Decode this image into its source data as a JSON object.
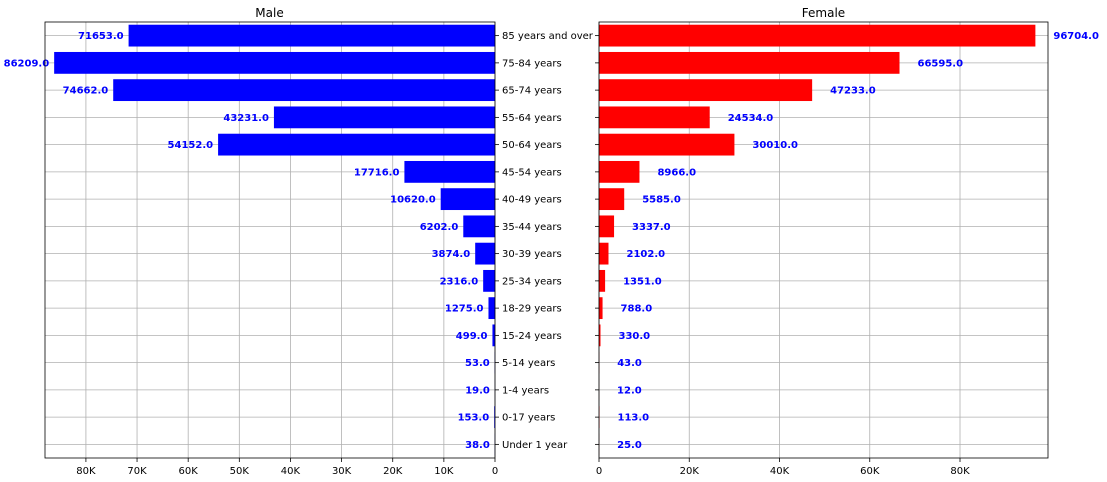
{
  "chart_data": {
    "type": "bar",
    "orientation": "horizontal",
    "layout": "population-pyramid",
    "categories": [
      "85 years and over",
      "75-84 years",
      "65-74 years",
      "55-64 years",
      "50-64 years",
      "45-54 years",
      "40-49 years",
      "35-44 years",
      "30-39 years",
      "25-34 years",
      "18-29 years",
      "15-24 years",
      "5-14 years",
      "1-4 years",
      "0-17 years",
      "Under 1 year"
    ],
    "series": [
      {
        "name": "Male",
        "color": "#0000ff",
        "values": [
          71653.0,
          86209.0,
          74662.0,
          43231.0,
          54152.0,
          17716.0,
          10620.0,
          6202.0,
          3874.0,
          2316.0,
          1275.0,
          499.0,
          53.0,
          19.0,
          153.0,
          38.0
        ],
        "value_labels": [
          "71653.0",
          "86209.0",
          "74662.0",
          "43231.0",
          "54152.0",
          "17716.0",
          "10620.0",
          "6202.0",
          "3874.0",
          "2316.0",
          "1275.0",
          "499.0",
          "53.0",
          "19.0",
          "153.0",
          "38.0"
        ],
        "xlim": [
          0,
          88000
        ],
        "x_inverted": true,
        "xticks": [
          0,
          10000,
          20000,
          30000,
          40000,
          50000,
          60000,
          70000,
          80000
        ],
        "xtick_labels": [
          "0",
          "10K",
          "20K",
          "30K",
          "40K",
          "50K",
          "60K",
          "70K",
          "80K"
        ]
      },
      {
        "name": "Female",
        "color": "#ff0000",
        "values": [
          96704.0,
          66595.0,
          47233.0,
          24534.0,
          30010.0,
          8966.0,
          5585.0,
          3337.0,
          2102.0,
          1351.0,
          788.0,
          330.0,
          43.0,
          12.0,
          113.0,
          25.0
        ],
        "value_labels": [
          "96704.0",
          "66595.0",
          "47233.0",
          "24534.0",
          "30010.0",
          "8966.0",
          "5585.0",
          "3337.0",
          "2102.0",
          "1351.0",
          "788.0",
          "330.0",
          "43.0",
          "12.0",
          "113.0",
          "25.0"
        ],
        "xlim": [
          0,
          99500
        ],
        "x_inverted": false,
        "xticks": [
          0,
          20000,
          40000,
          60000,
          80000
        ],
        "xtick_labels": [
          "0",
          "20K",
          "40K",
          "60K",
          "80K"
        ]
      }
    ],
    "data_label_color": "#0000ff",
    "grid": true,
    "legend": "none"
  }
}
